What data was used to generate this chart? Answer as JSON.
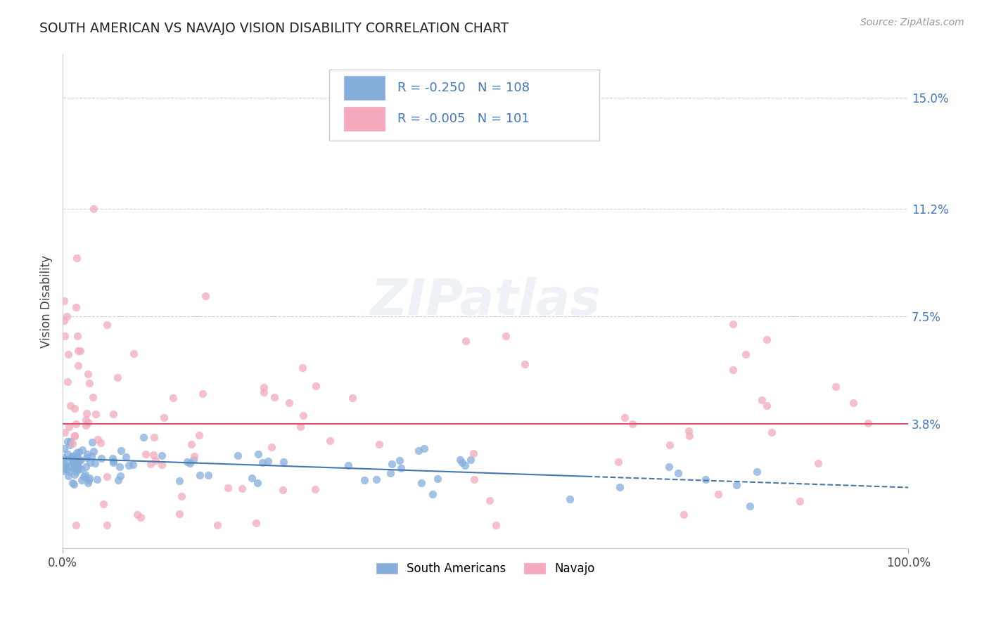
{
  "title": "SOUTH AMERICAN VS NAVAJO VISION DISABILITY CORRELATION CHART",
  "source": "Source: ZipAtlas.com",
  "ylabel": "Vision Disability",
  "xlim": [
    0.0,
    1.0
  ],
  "ylim": [
    -0.005,
    0.165
  ],
  "yticks": [
    0.038,
    0.075,
    0.112,
    0.15
  ],
  "ytick_labels": [
    "3.8%",
    "7.5%",
    "11.2%",
    "15.0%"
  ],
  "xtick_labels": [
    "0.0%",
    "100.0%"
  ],
  "legend_R1": "R = -0.250",
  "legend_N1": "N = 108",
  "legend_R2": "R = -0.005",
  "legend_N2": "N = 101",
  "blue_color": "#85AEDD",
  "pink_color": "#F4AABC",
  "line_blue": "#4477AA",
  "line_pink": "#DD5566",
  "grid_color": "#CCCCDD",
  "bg_color": "#FFFFFF",
  "text_color": "#4477BB",
  "title_color": "#222222",
  "source_color": "#999999"
}
